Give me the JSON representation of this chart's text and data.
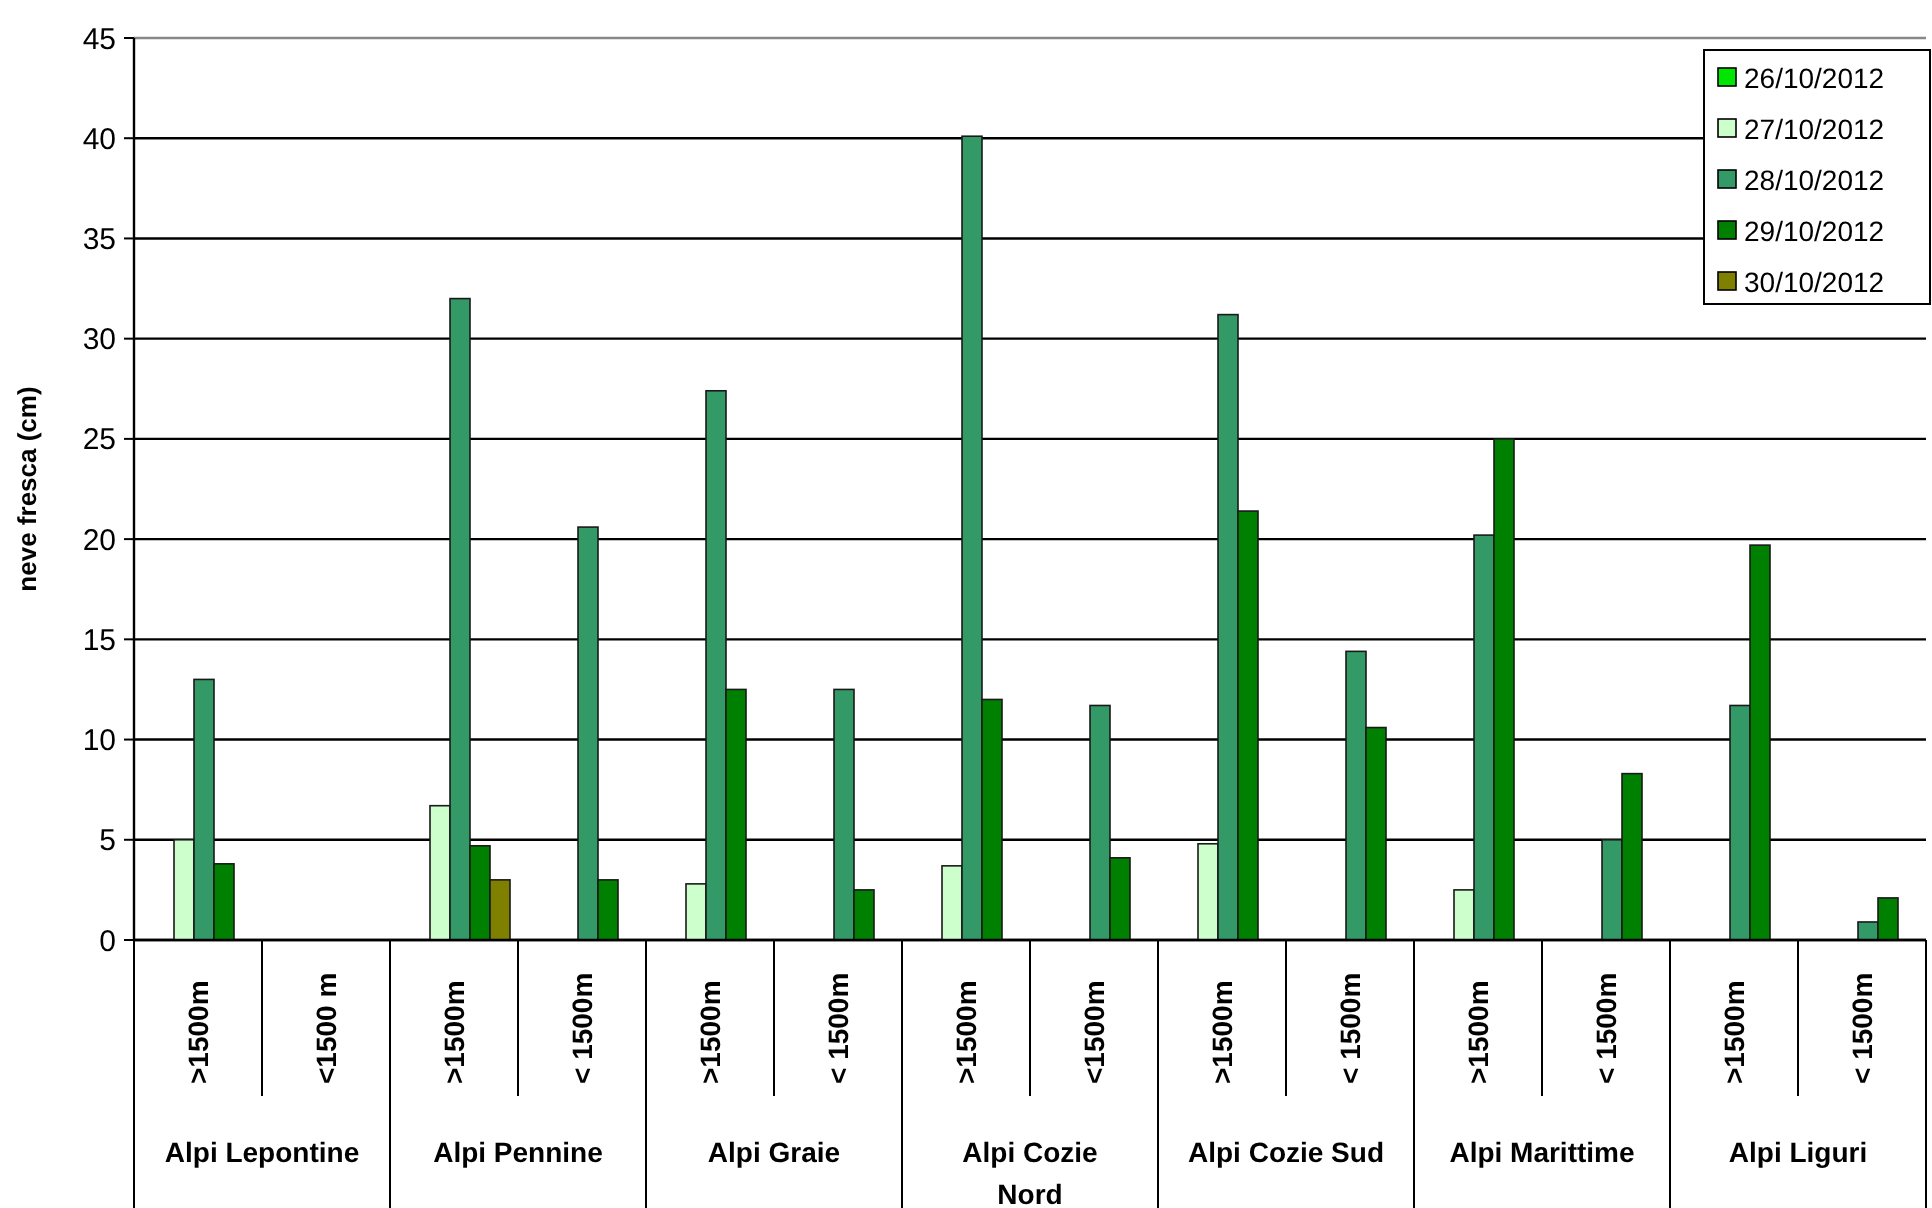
{
  "chart_data": {
    "type": "bar",
    "ylabel": "neve fresca (cm)",
    "categories": [
      ">1500m",
      "<1500 m",
      ">1500m",
      "< 1500m",
      ">1500m",
      "< 1500m",
      ">1500m",
      "<1500m",
      ">1500m",
      "< 1500m",
      ">1500m",
      "< 1500m",
      ">1500m",
      "< 1500m"
    ],
    "annotations": [
      "Alpi Lepontine",
      "Alpi Pennine",
      "Alpi Graie",
      "Alpi Cozie Nord",
      "Alpi Cozie Sud",
      "Alpi Marittime",
      "Alpi Liguri"
    ],
    "series": [
      {
        "name": "26/10/2012",
        "color": "#00e600",
        "values": [
          null,
          null,
          null,
          null,
          null,
          null,
          null,
          null,
          null,
          null,
          null,
          null,
          null,
          null
        ]
      },
      {
        "name": "27/10/2012",
        "color": "#ccffcc",
        "values": [
          5.0,
          null,
          6.7,
          null,
          2.8,
          null,
          3.7,
          null,
          4.8,
          null,
          2.5,
          null,
          null,
          null
        ]
      },
      {
        "name": "28/10/2012",
        "color": "#339966",
        "values": [
          13.0,
          null,
          32.0,
          20.6,
          27.4,
          12.5,
          40.1,
          11.7,
          31.2,
          14.4,
          20.2,
          5.0,
          11.7,
          0.9
        ]
      },
      {
        "name": "29/10/2012",
        "color": "#008000",
        "values": [
          3.8,
          null,
          4.7,
          3.0,
          12.5,
          2.5,
          12.0,
          4.1,
          21.4,
          10.6,
          25.0,
          8.3,
          19.7,
          2.1
        ]
      },
      {
        "name": "30/10/2012",
        "color": "#808000",
        "values": [
          null,
          null,
          3.0,
          null,
          null,
          null,
          null,
          null,
          null,
          null,
          null,
          null,
          null,
          null
        ]
      }
    ],
    "ylim": [
      0,
      45
    ],
    "yticks": [
      0,
      5,
      10,
      15,
      20,
      25,
      30,
      35,
      40,
      45
    ],
    "grid": "y",
    "legend": "top right"
  }
}
